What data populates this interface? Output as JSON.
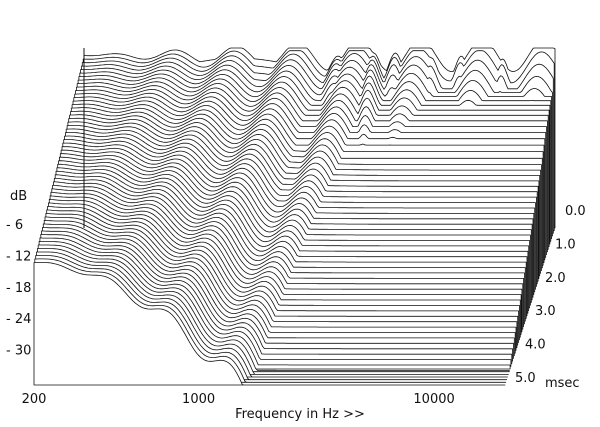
{
  "chart_data": {
    "type": "waterfall",
    "xlabel": "Frequency in Hz >>",
    "ylabel": "dB",
    "x_scale": "log",
    "x_range_hz": [
      200,
      20000
    ],
    "x_ticks": [
      {
        "label": "200",
        "value": 200
      },
      {
        "label": "1000",
        "value": 1000
      },
      {
        "label": "10000",
        "value": 10000
      }
    ],
    "y_ticks": [
      {
        "label": "- 6",
        "value": -6
      },
      {
        "label": "- 12",
        "value": -12
      },
      {
        "label": "- 18",
        "value": -18
      },
      {
        "label": "- 24",
        "value": -24
      },
      {
        "label": "- 30",
        "value": -30
      }
    ],
    "y_range_db": [
      -36,
      0
    ],
    "time_ticks": [
      {
        "label": "0.0",
        "value": 0.0
      },
      {
        "label": "1.0",
        "value": 1.0
      },
      {
        "label": "2.0",
        "value": 2.0
      },
      {
        "label": "3.0",
        "value": 3.0
      },
      {
        "label": "4.0",
        "value": 4.0
      },
      {
        "label": "5.0",
        "value": 5.0
      }
    ],
    "time_unit": "msec",
    "time_range_ms": [
      0,
      5.0
    ],
    "slice_count": 60,
    "line_color": "#111111",
    "fill_color": "#ffffff"
  }
}
